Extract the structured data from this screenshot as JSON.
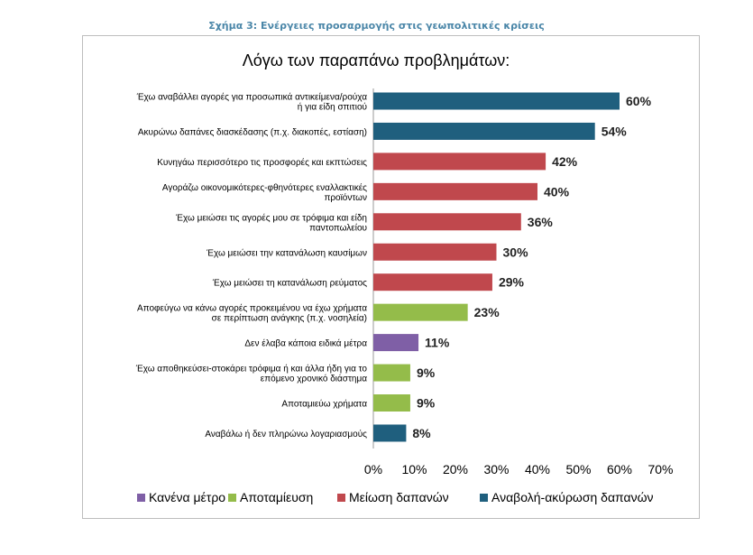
{
  "caption": "Σχήμα 3: Ενέργειες προσαρμογής στις γεωπολιτικές κρίσεις",
  "chart_data": {
    "type": "bar",
    "orientation": "horizontal",
    "title": "Λόγω των παραπάνω προβλημάτων:",
    "xlim": [
      0,
      70
    ],
    "x_ticks": [
      "0%",
      "10%",
      "20%",
      "30%",
      "40%",
      "50%",
      "60%",
      "70%"
    ],
    "grid": false,
    "legend_position": "bottom",
    "bars": [
      {
        "label_lines": [
          "Έχω αναβάλλει αγορές για προσωπικά αντικείμενα/ρούχα",
          "ή για είδη σπιτιού"
        ],
        "value": 60,
        "value_label": "60%",
        "series": "Αναβολή-ακύρωση δαπανών"
      },
      {
        "label_lines": [
          "Ακυρώνω δαπάνες διασκέδασης (π.χ. διακοπές, εστίαση)"
        ],
        "value": 54,
        "value_label": "54%",
        "series": "Αναβολή-ακύρωση δαπανών"
      },
      {
        "label_lines": [
          "Κυνηγάω περισσότερο τις προσφορές και εκπτώσεις"
        ],
        "value": 42,
        "value_label": "42%",
        "series": "Μείωση δαπανών"
      },
      {
        "label_lines": [
          "Αγοράζω οικονομικότερες-φθηνότερες εναλλακτικές",
          "προϊόντων"
        ],
        "value": 40,
        "value_label": "40%",
        "series": "Μείωση δαπανών"
      },
      {
        "label_lines": [
          "Έχω μειώσει τις αγορές μου σε τρόφιμα και είδη",
          "παντοπωλείου"
        ],
        "value": 36,
        "value_label": "36%",
        "series": "Μείωση δαπανών"
      },
      {
        "label_lines": [
          "Έχω μειώσει την κατανάλωση καυσίμων"
        ],
        "value": 30,
        "value_label": "30%",
        "series": "Μείωση δαπανών"
      },
      {
        "label_lines": [
          "Έχω μειώσει τη κατανάλωση ρεύματος"
        ],
        "value": 29,
        "value_label": "29%",
        "series": "Μείωση δαπανών"
      },
      {
        "label_lines": [
          "Αποφεύγω να κάνω αγορές προκειμένου να έχω χρήματα",
          "σε περίπτωση ανάγκης (π.χ. νοσηλεία)"
        ],
        "value": 23,
        "value_label": "23%",
        "series": "Αποταμίευση"
      },
      {
        "label_lines": [
          "Δεν έλαβα κάποια ειδικά μέτρα"
        ],
        "value": 11,
        "value_label": "11%",
        "series": "Κανένα μέτρο"
      },
      {
        "label_lines": [
          "Έχω αποθηκεύσει-στοκάρει τρόφιμα ή και άλλα ήδη για το",
          "επόμενο χρονικό διάστημα"
        ],
        "value": 9,
        "value_label": "9%",
        "series": "Αποταμίευση"
      },
      {
        "label_lines": [
          "Αποταμιεύω χρήματα"
        ],
        "value": 9,
        "value_label": "9%",
        "series": "Αποταμίευση"
      },
      {
        "label_lines": [
          "Αναβάλω ή δεν πληρώνω λογαριασμούς"
        ],
        "value": 8,
        "value_label": "8%",
        "series": "Αναβολή-ακύρωση δαπανών"
      }
    ],
    "legend": [
      {
        "name": "Κανένα μέτρο",
        "color": "#7f5fa6"
      },
      {
        "name": "Αποταμίευση",
        "color": "#94bc4a"
      },
      {
        "name": "Μείωση δαπανών",
        "color": "#c0484d"
      },
      {
        "name": "Αναβολή-ακύρωση δαπανών",
        "color": "#1f5f7e"
      }
    ]
  }
}
